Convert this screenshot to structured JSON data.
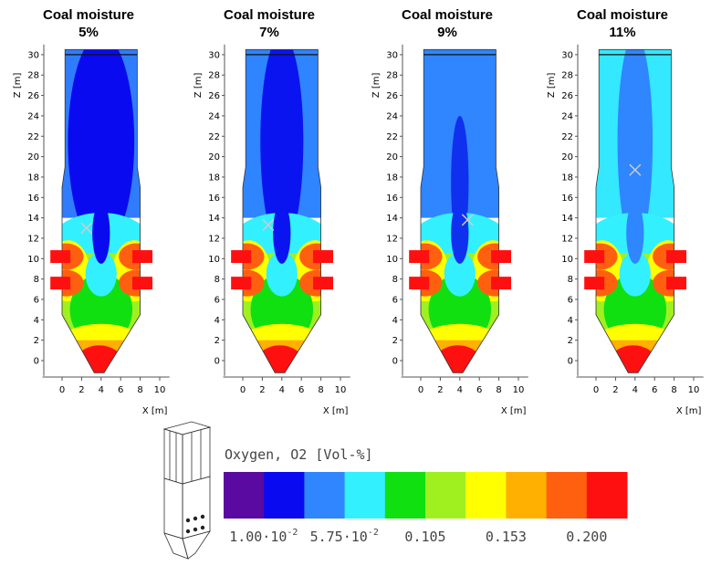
{
  "panels": [
    {
      "title": "Coal moisture",
      "moisture": "5%"
    },
    {
      "title": "Coal moisture",
      "moisture": "7%"
    },
    {
      "title": "Coal moisture",
      "moisture": "9%"
    },
    {
      "title": "Coal moisture",
      "moisture": "11%"
    }
  ],
  "axes": {
    "z_label": "Z [m]",
    "x_label": "X [m]",
    "z_ticks": [
      0,
      2,
      4,
      6,
      8,
      10,
      12,
      14,
      16,
      18,
      20,
      22,
      24,
      26,
      28,
      30
    ],
    "x_ticks": [
      0,
      2,
      4,
      6,
      8,
      10
    ]
  },
  "legend": {
    "title": "Oxygen, O2 [Vol-%]",
    "colors": [
      "#5a0aa0",
      "#0a0af0",
      "#2f86ff",
      "#33f0ff",
      "#10e010",
      "#a0f020",
      "#ffff00",
      "#ffb000",
      "#ff6010",
      "#ff1010"
    ],
    "labels": [
      {
        "mantissa": "1.00·10",
        "exponent": "-2"
      },
      {
        "mantissa": "5.75·10",
        "exponent": "-2"
      },
      {
        "text": "0.105"
      },
      {
        "text": "0.153"
      },
      {
        "text": "0.200"
      }
    ]
  }
}
